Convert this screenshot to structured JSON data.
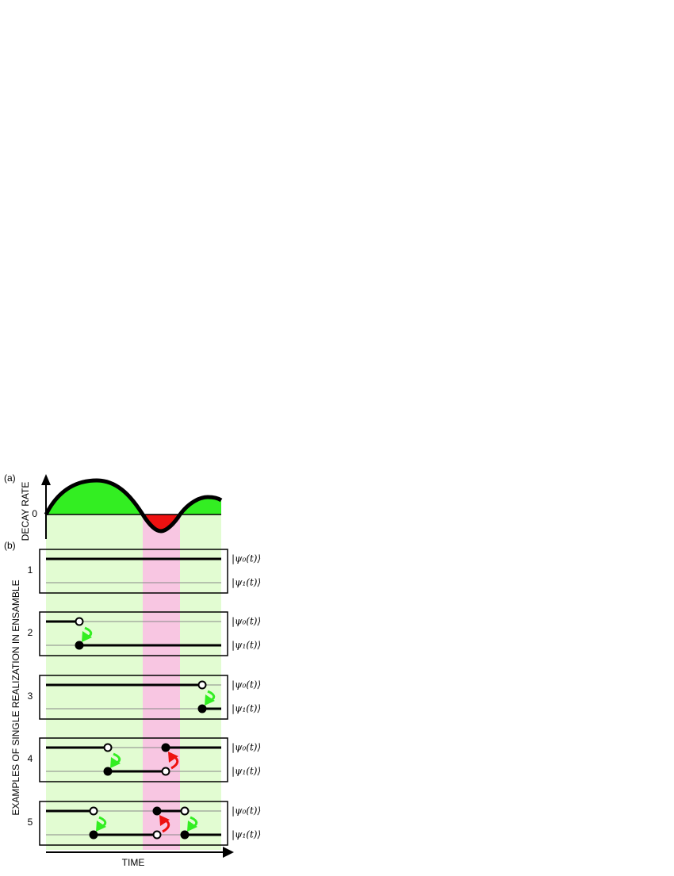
{
  "panel_a": {
    "label": "(a)",
    "y_axis_label": "DECAY RATE",
    "zero_label": "0"
  },
  "panel_b": {
    "label": "(b)",
    "y_axis_label": "EXAMPLES OF SINGLE REALIZATION IN ENSAMBLE",
    "rows": [
      {
        "number": "1",
        "upper_state": "|ψ₀(t)⟩",
        "lower_state": "|ψ₁(t)⟩"
      },
      {
        "number": "2",
        "upper_state": "|ψ₀(t)⟩",
        "lower_state": "|ψ₁(t)⟩"
      },
      {
        "number": "3",
        "upper_state": "|ψ₀(t)⟩",
        "lower_state": "|ψ₁(t)⟩"
      },
      {
        "number": "4",
        "upper_state": "|ψ₀(t)⟩",
        "lower_state": "|ψ₁(t)⟩"
      },
      {
        "number": "5",
        "upper_state": "|ψ₀(t)⟩",
        "lower_state": "|ψ₁(t)⟩"
      }
    ]
  },
  "x_axis_label": "TIME"
}
